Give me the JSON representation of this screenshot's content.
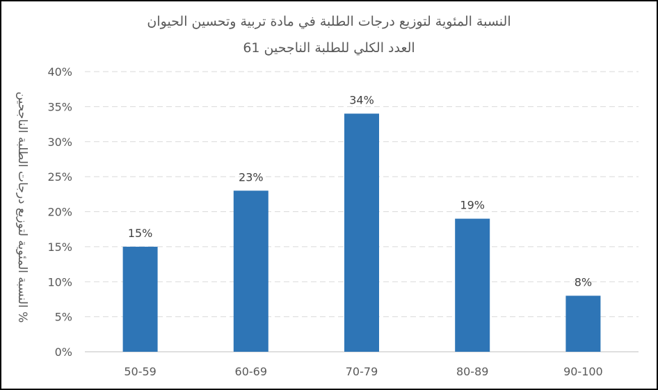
{
  "chart_data": {
    "type": "bar",
    "title": "النسبة المئوية لتوزيع درجات الطلبة في مادة تربية وتحسين الحيوان",
    "subtitle": "العدد الكلي للطلبة الناجحين 61",
    "ylabel": "% النسبة المئوية لتوزيع درجات الطلبة الناجحين",
    "xlabel": "",
    "categories": [
      "50-59",
      "60-69",
      "70-79",
      "80-89",
      "90-100"
    ],
    "values": [
      15,
      23,
      34,
      19,
      8
    ],
    "value_labels": [
      "15%",
      "23%",
      "34%",
      "19%",
      "8%"
    ],
    "ylim": [
      0,
      40
    ],
    "yticks": [
      "0%",
      "5%",
      "10%",
      "15%",
      "20%",
      "25%",
      "30%",
      "35%",
      "40%"
    ],
    "grid": true,
    "legend": "none",
    "bar_color": "#2E75B6"
  }
}
